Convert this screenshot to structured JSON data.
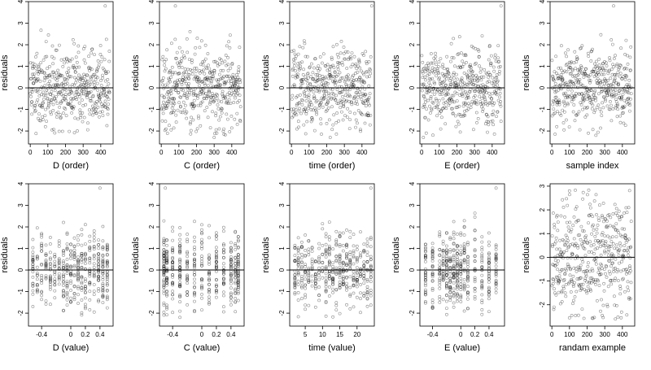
{
  "chart_data": [
    {
      "type": "scatter",
      "xlabel": "D (order)",
      "ylabel": "residuals",
      "xlim": [
        -10,
        470
      ],
      "ylim": [
        -2.6,
        4
      ],
      "xticks": [
        0,
        100,
        200,
        300,
        400
      ],
      "yticks": [
        -2,
        -1,
        0,
        1,
        2,
        3,
        4
      ],
      "hline": 0,
      "x_kind": "order",
      "seed": 11,
      "n": 450,
      "spread": 0.9,
      "outliers": [
        [
          425,
          3.8
        ]
      ]
    },
    {
      "type": "scatter",
      "xlabel": "C (order)",
      "ylabel": "residuals",
      "xlim": [
        -10,
        470
      ],
      "ylim": [
        -2.6,
        4
      ],
      "xticks": [
        0,
        100,
        200,
        300,
        400
      ],
      "yticks": [
        -2,
        -1,
        0,
        1,
        2,
        3,
        4
      ],
      "hline": 0,
      "x_kind": "order",
      "seed": 23,
      "n": 450,
      "spread": 0.9,
      "outliers": [
        [
          80,
          3.8
        ],
        [
          300,
          -2.3
        ]
      ]
    },
    {
      "type": "scatter",
      "xlabel": "time (order)",
      "ylabel": "residuals",
      "xlim": [
        -10,
        470
      ],
      "ylim": [
        -2.6,
        4
      ],
      "xticks": [
        0,
        100,
        200,
        300,
        400
      ],
      "yticks": [
        -2,
        -1,
        0,
        1,
        2,
        3,
        4
      ],
      "hline": 0,
      "x_kind": "order",
      "seed": 37,
      "n": 450,
      "spread": 0.9,
      "outliers": [
        [
          455,
          3.8
        ],
        [
          220,
          -2.3
        ]
      ]
    },
    {
      "type": "scatter",
      "xlabel": "E (order)",
      "ylabel": "residuals",
      "xlim": [
        -10,
        470
      ],
      "ylim": [
        -2.6,
        4
      ],
      "xticks": [
        0,
        100,
        200,
        300,
        400
      ],
      "yticks": [
        -2,
        -1,
        0,
        1,
        2,
        3,
        4
      ],
      "hline": 0,
      "x_kind": "order",
      "seed": 41,
      "n": 450,
      "spread": 0.9,
      "outliers": [
        [
          450,
          3.8
        ],
        [
          10,
          -2.3
        ]
      ]
    },
    {
      "type": "scatter",
      "xlabel": "sample index",
      "ylabel": "residuals",
      "xlim": [
        -10,
        470
      ],
      "ylim": [
        -2.6,
        4
      ],
      "xticks": [
        0,
        100,
        200,
        300,
        400
      ],
      "yticks": [
        -2,
        -1,
        0,
        1,
        2,
        3,
        4
      ],
      "hline": 0,
      "x_kind": "order",
      "seed": 53,
      "n": 450,
      "spread": 0.9,
      "outliers": [
        [
          350,
          3.8
        ],
        [
          250,
          -2.2
        ]
      ]
    },
    {
      "type": "scatter",
      "xlabel": "D (value)",
      "ylabel": "residuals",
      "xlim": [
        -0.58,
        0.58
      ],
      "ylim": [
        -2.6,
        4
      ],
      "xticks": [
        -0.4,
        0.0,
        0.2,
        0.4
      ],
      "yticks": [
        -2,
        -1,
        0,
        1,
        2,
        3,
        4
      ],
      "hline": 0,
      "x_kind": "value",
      "x_levels": [
        -0.52,
        -0.46,
        -0.4,
        -0.34,
        -0.28,
        -0.22,
        -0.16,
        -0.1,
        -0.05,
        0.0,
        0.05,
        0.1,
        0.15,
        0.2,
        0.26,
        0.32,
        0.38,
        0.44,
        0.5
      ],
      "seed": 61,
      "n": 450,
      "spread": 0.85,
      "outliers": [
        [
          0.4,
          3.8
        ]
      ]
    },
    {
      "type": "scatter",
      "xlabel": "C (value)",
      "ylabel": "residuals",
      "xlim": [
        -0.58,
        0.58
      ],
      "ylim": [
        -2.6,
        4
      ],
      "xticks": [
        -0.4,
        0.0,
        0.2,
        0.4
      ],
      "yticks": [
        -2,
        -1,
        0,
        1,
        2,
        3,
        4
      ],
      "hline": 0,
      "x_kind": "value",
      "x_levels": [
        -0.52,
        -0.48,
        -0.4,
        -0.3,
        -0.2,
        -0.1,
        0.0,
        0.1,
        0.2,
        0.3,
        0.4,
        0.46,
        0.5
      ],
      "seed": 67,
      "n": 450,
      "spread": 0.85,
      "outliers": [
        [
          -0.5,
          3.8
        ]
      ]
    },
    {
      "type": "scatter",
      "xlabel": "time (value)",
      "ylabel": "residuals",
      "xlim": [
        0.5,
        25
      ],
      "ylim": [
        -2.6,
        4
      ],
      "xticks": [
        5,
        10,
        15,
        20
      ],
      "yticks": [
        -2,
        -1,
        0,
        1,
        2,
        3,
        4
      ],
      "hline": 0,
      "x_kind": "value",
      "x_levels": [
        2,
        3,
        4,
        5,
        6,
        7,
        8,
        9,
        10,
        11,
        12,
        13,
        14,
        15,
        16,
        17,
        18,
        19,
        20,
        21,
        22,
        23,
        24
      ],
      "seed": 71,
      "n": 450,
      "spread": 0.85,
      "outliers": [
        [
          24,
          3.8
        ]
      ]
    },
    {
      "type": "scatter",
      "xlabel": "E (value)",
      "ylabel": "residuals",
      "xlim": [
        -0.58,
        0.62
      ],
      "ylim": [
        -2.6,
        4
      ],
      "xticks": [
        -0.4,
        0.0,
        0.2,
        0.4
      ],
      "yticks": [
        -2,
        -1,
        0,
        1,
        2,
        3,
        4
      ],
      "hline": 0,
      "x_kind": "value",
      "x_levels": [
        -0.5,
        -0.4,
        -0.3,
        -0.25,
        -0.2,
        -0.15,
        -0.1,
        -0.05,
        0.0,
        0.05,
        0.1,
        0.2,
        0.3,
        0.4,
        0.5
      ],
      "seed": 79,
      "n": 450,
      "spread": 0.85,
      "outliers": [
        [
          0.5,
          3.8
        ]
      ]
    },
    {
      "type": "scatter",
      "xlabel": "randam example",
      "ylabel": "residuals",
      "xlim": [
        -10,
        470
      ],
      "ylim": [
        -2.9,
        3.1
      ],
      "xticks": [
        0,
        100,
        200,
        300,
        400
      ],
      "yticks": [
        -2,
        -1,
        0,
        1,
        2,
        3
      ],
      "hline": 0,
      "x_kind": "random",
      "seed": 89,
      "n": 450,
      "spread": 1.25,
      "outliers": [
        [
          360,
          -2.6
        ],
        [
          100,
          2.8
        ]
      ]
    }
  ]
}
